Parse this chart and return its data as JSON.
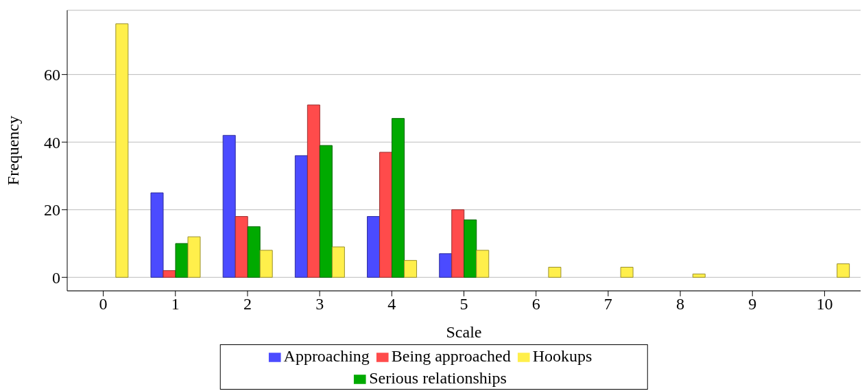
{
  "chart_data": {
    "type": "bar",
    "xlabel": "Scale",
    "ylabel": "Frequency",
    "categories": [
      "0",
      "1",
      "2",
      "3",
      "4",
      "5",
      "6",
      "7",
      "8",
      "9",
      "10"
    ],
    "series": [
      {
        "name": "Approaching",
        "color": "#4b4bff",
        "values": [
          0,
          25,
          42,
          36,
          18,
          7,
          0,
          0,
          0,
          0,
          0
        ]
      },
      {
        "name": "Being approached",
        "color": "#ff4b4b",
        "values": [
          0,
          2,
          18,
          51,
          37,
          20,
          0,
          0,
          0,
          0,
          0
        ]
      },
      {
        "name": "Serious relationships",
        "color": "#00aa00",
        "values": [
          0,
          10,
          15,
          39,
          47,
          17,
          0,
          0,
          0,
          0,
          0
        ]
      },
      {
        "name": "Hookups",
        "color": "#ffef4b",
        "values": [
          75,
          12,
          8,
          9,
          5,
          8,
          3,
          3,
          1,
          0,
          4
        ]
      }
    ],
    "ylim": [
      -4,
      79
    ],
    "yticks": [
      0,
      20,
      40,
      60
    ],
    "grid": "y",
    "legend": "bottom"
  }
}
